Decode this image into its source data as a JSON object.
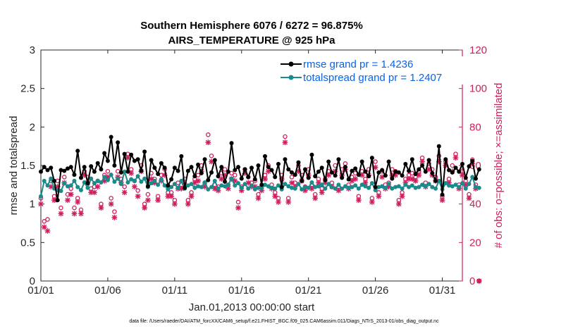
{
  "chart_data": {
    "type": "line",
    "title_line1": "Southern Hemisphere 6076 / 6272 = 96.875%",
    "title_line2": "AIRS_TEMPERATURE @ 925 hPa",
    "xlabel": "Jan.01,2013 00:00:00 start",
    "ylabel_left": "rmse and totalspread",
    "ylabel_right": "# of obs: o=possible; ×=assimilated",
    "x_tick_labels": [
      "01/01",
      "01/06",
      "01/11",
      "01/16",
      "01/21",
      "01/26",
      "01/31"
    ],
    "x_tick_days": [
      0,
      5,
      10,
      15,
      20,
      25,
      30
    ],
    "xlim": [
      0,
      31.5
    ],
    "ylim_left": [
      0,
      3
    ],
    "y_ticks_left": [
      "0",
      "0.5",
      "1",
      "1.5",
      "2",
      "2.5",
      "3"
    ],
    "ylim_right": [
      0,
      120
    ],
    "y_ticks_right": [
      "0",
      "20",
      "40",
      "60",
      "80",
      "100",
      "120"
    ],
    "legend_position": "top-right",
    "series": [
      {
        "name": "rmse grand pr = 1.4236",
        "color": "#000000",
        "axis": "left",
        "values": [
          1.42,
          1.48,
          1.44,
          1.47,
          1.3,
          1.05,
          1.44,
          1.43,
          1.46,
          1.48,
          1.38,
          1.69,
          1.34,
          1.48,
          1.27,
          1.49,
          1.42,
          1.53,
          1.45,
          1.66,
          1.56,
          1.87,
          1.5,
          1.8,
          1.41,
          1.65,
          1.42,
          1.64,
          1.56,
          1.58,
          1.43,
          1.68,
          1.23,
          1.57,
          1.47,
          1.39,
          1.53,
          1.47,
          1.24,
          1.32,
          1.47,
          1.43,
          1.62,
          1.21,
          1.43,
          1.48,
          1.36,
          1.51,
          1.4,
          1.58,
          1.31,
          1.41,
          1.57,
          1.36,
          1.48,
          1.29,
          1.42,
          1.79,
          1.44,
          1.48,
          1.33,
          1.45,
          1.35,
          1.47,
          1.32,
          1.5,
          1.25,
          1.62,
          1.48,
          1.44,
          1.35,
          1.52,
          1.22,
          1.58,
          1.45,
          1.41,
          1.38,
          1.54,
          1.3,
          1.45,
          1.34,
          1.64,
          1.36,
          1.42,
          1.47,
          1.31,
          1.55,
          1.41,
          1.37,
          1.58,
          1.34,
          1.48,
          1.32,
          1.43,
          1.46,
          1.38,
          1.55,
          1.42,
          1.36,
          1.6,
          1.22,
          1.41,
          1.44,
          1.37,
          1.55,
          1.33,
          1.42,
          1.41,
          1.37,
          1.52,
          1.43,
          1.58,
          1.39,
          1.45,
          1.5,
          1.42,
          1.57,
          1.4,
          1.3,
          1.75,
          1.12,
          1.58,
          1.44,
          1.41,
          1.47,
          1.42,
          1.52,
          1.34,
          1.49,
          1.56,
          1.33,
          1.45
        ]
      },
      {
        "name": "totalspread grand pr = 1.2407",
        "color": "#1a8a8a",
        "axis": "left",
        "values": [
          1.1,
          1.3,
          1.24,
          1.33,
          1.2,
          1.18,
          1.17,
          1.27,
          1.23,
          1.24,
          1.3,
          1.22,
          1.18,
          1.28,
          1.21,
          1.33,
          1.27,
          1.3,
          1.28,
          1.35,
          1.31,
          1.38,
          1.29,
          1.33,
          1.26,
          1.42,
          1.28,
          1.32,
          1.3,
          1.36,
          1.29,
          1.33,
          1.22,
          1.27,
          1.3,
          1.25,
          1.32,
          1.24,
          1.19,
          1.22,
          1.26,
          1.21,
          1.3,
          1.2,
          1.24,
          1.26,
          1.21,
          1.23,
          1.22,
          1.28,
          1.19,
          1.22,
          1.3,
          1.2,
          1.24,
          1.23,
          1.25,
          1.33,
          1.24,
          1.27,
          1.21,
          1.26,
          1.2,
          1.24,
          1.19,
          1.21,
          1.2,
          1.25,
          1.23,
          1.21,
          1.2,
          1.24,
          1.19,
          1.26,
          1.23,
          1.21,
          1.2,
          1.26,
          1.19,
          1.22,
          1.21,
          1.28,
          1.22,
          1.23,
          1.25,
          1.2,
          1.26,
          1.22,
          1.2,
          1.25,
          1.2,
          1.23,
          1.21,
          1.22,
          1.24,
          1.2,
          1.25,
          1.23,
          1.21,
          1.27,
          1.18,
          1.22,
          1.23,
          1.21,
          1.26,
          1.2,
          1.22,
          1.23,
          1.2,
          1.25,
          1.22,
          1.24,
          1.21,
          1.22,
          1.25,
          1.23,
          1.26,
          1.22,
          1.2,
          1.3,
          1.19,
          1.27,
          1.24,
          1.23,
          1.25,
          1.22,
          1.27,
          1.2,
          1.26,
          1.35,
          1.22,
          1.21
        ]
      },
      {
        "name": "# of obs possible",
        "marker": "o",
        "color": "#d11d5e",
        "axis": "right",
        "values": [
          43,
          31,
          32,
          52,
          44,
          52,
          38,
          54,
          45,
          48,
          38,
          43,
          37,
          57,
          54,
          48,
          49,
          52,
          40,
          55,
          57,
          43,
          36,
          57,
          53,
          49,
          66,
          58,
          52,
          47,
          60,
          40,
          45,
          56,
          53,
          44,
          55,
          58,
          46,
          46,
          42,
          51,
          50,
          53,
          42,
          46,
          53,
          55,
          60,
          51,
          76,
          65,
          50,
          49,
          56,
          58,
          50,
          56,
          55,
          41,
          49,
          58,
          54,
          51,
          52,
          45,
          49,
          55,
          60,
          50,
          46,
          43,
          55,
          75,
          43,
          54,
          51,
          60,
          55,
          49,
          58,
          50,
          45,
          53,
          48,
          53,
          57,
          51,
          60,
          49,
          58,
          61,
          50,
          54,
          56,
          44,
          57,
          53,
          58,
          43,
          62,
          46,
          57,
          50,
          51,
          58,
          57,
          42,
          46,
          53,
          55,
          56,
          54,
          57,
          64,
          51,
          61,
          58,
          54,
          65,
          44,
          62,
          53,
          60,
          66,
          50,
          57,
          52,
          45,
          63,
          50,
          0
        ]
      },
      {
        "name": "# of obs assimilated",
        "marker": "x",
        "color": "#d11d5e",
        "axis": "right",
        "values": [
          40,
          28,
          26,
          49,
          42,
          49,
          35,
          51,
          42,
          45,
          35,
          41,
          35,
          55,
          51,
          46,
          46,
          49,
          38,
          52,
          54,
          40,
          33,
          54,
          51,
          46,
          64,
          56,
          49,
          44,
          57,
          38,
          42,
          53,
          51,
          42,
          52,
          55,
          44,
          44,
          40,
          48,
          48,
          50,
          40,
          44,
          51,
          52,
          57,
          49,
          72,
          62,
          48,
          47,
          53,
          55,
          48,
          53,
          52,
          38,
          47,
          56,
          51,
          49,
          49,
          43,
          47,
          53,
          57,
          48,
          44,
          41,
          53,
          72,
          41,
          51,
          49,
          57,
          52,
          47,
          55,
          48,
          43,
          51,
          46,
          51,
          55,
          49,
          57,
          47,
          55,
          58,
          48,
          52,
          53,
          42,
          55,
          51,
          55,
          41,
          59,
          44,
          54,
          48,
          49,
          55,
          55,
          40,
          44,
          51,
          53,
          53,
          52,
          55,
          62,
          49,
          58,
          55,
          52,
          62,
          42,
          60,
          51,
          57,
          64,
          48,
          55,
          50,
          43,
          61,
          48,
          0
        ]
      }
    ]
  },
  "footnote": "data file: /Users/raeder/DAI/ATM_forcXX/CAM6_setup/f.e21.FHIST_BGC.f09_025.CAM6assim.011/Diags_NTrS_2013-01/obs_diag_output.nc"
}
